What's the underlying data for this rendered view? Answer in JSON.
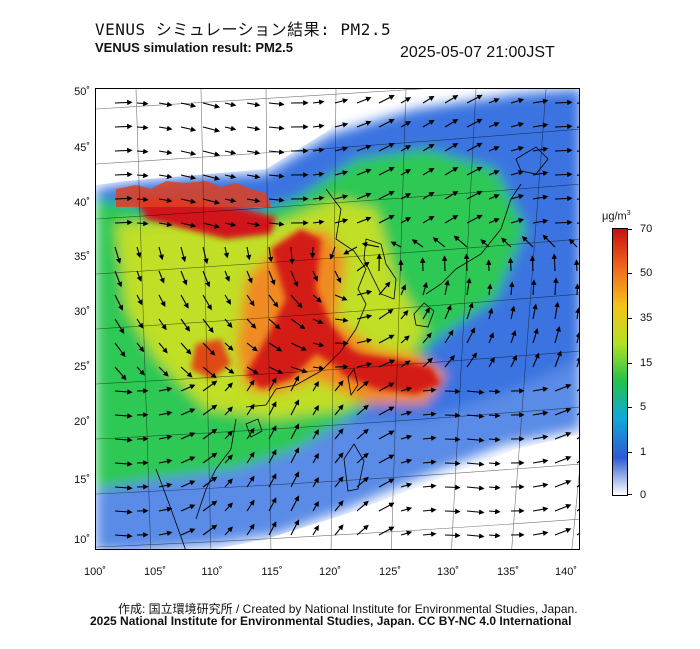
{
  "header": {
    "title_jp": "VENUS シミュレーション結果: PM2.5",
    "title_en": "VENUS simulation result: PM2.5",
    "timestamp": "2025-05-07 21:00JST"
  },
  "map": {
    "lat_ticks": [
      "50˚",
      "45˚",
      "40˚",
      "35˚",
      "30˚",
      "25˚",
      "20˚",
      "15˚",
      "10˚"
    ],
    "lon_ticks": [
      "100˚",
      "105˚",
      "110˚",
      "115˚",
      "120˚",
      "125˚",
      "130˚",
      "135˚",
      "140˚"
    ],
    "field": "PM2.5 concentration with wind vectors",
    "hotspots": [
      {
        "region": "Northern China Plain band",
        "level": 70
      },
      {
        "region": "Central-eastern China",
        "level": 60
      },
      {
        "region": "Taiwan Strait to East China Sea plume",
        "level": 65
      }
    ]
  },
  "colorbar": {
    "unit": "μg/m",
    "unit_sup": "3",
    "labels": [
      "70",
      "50",
      "35",
      "15",
      "5",
      "1",
      "0"
    ],
    "colors": [
      "#ffffff",
      "#2c5bd4",
      "#10a8d8",
      "#22c34a",
      "#b4e022",
      "#f5c41a",
      "#f0641c",
      "#c81010"
    ]
  },
  "footer": {
    "credit_line": "作成: 国立環境研究所 / Created by National Institute for Environmental Studies, Japan.",
    "license_line": "2025 National Institute for Environmental Studies, Japan. CC BY-NC 4.0 International"
  }
}
